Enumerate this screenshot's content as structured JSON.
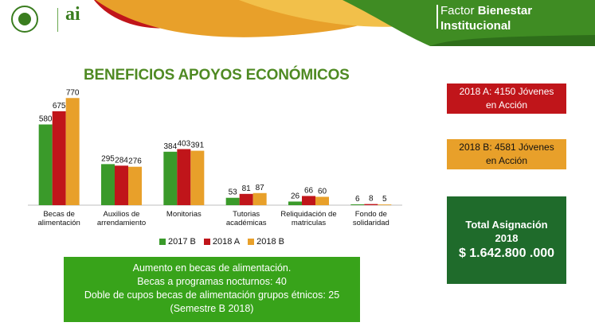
{
  "header": {
    "title_prefix": "Factor",
    "title_bold": "Bienestar",
    "title_line2": "Institucional",
    "logo_text": "ai"
  },
  "colors": {
    "s2017b": "#3a9a2a",
    "s2018a": "#c0151a",
    "s2018b": "#e8a02a",
    "title_green": "#4f8a23",
    "note_green": "#38a31a",
    "total_green": "#1f6b2b"
  },
  "chart_data": {
    "type": "bar",
    "title": "BENEFICIOS APOYOS ECONÓMICOS",
    "categories": [
      [
        "Becas de",
        "alimentación"
      ],
      [
        "Auxilios de",
        "arrendamiento"
      ],
      [
        "Monitorias"
      ],
      [
        "Tutorias",
        "académicas"
      ],
      [
        "Reliquidación de",
        "matriculas"
      ],
      [
        "Fondo de",
        "solidaridad"
      ]
    ],
    "series": [
      {
        "name": "2017 B",
        "values": [
          580,
          295,
          384,
          53,
          26,
          6
        ]
      },
      {
        "name": "2018 A",
        "values": [
          675,
          284,
          403,
          81,
          66,
          8
        ]
      },
      {
        "name": "2018 B",
        "values": [
          770,
          276,
          391,
          87,
          60,
          5
        ]
      }
    ],
    "ylim": [
      0,
      800
    ],
    "grid": false,
    "legend": "bottom"
  },
  "notes": {
    "line1": "Aumento en becas de alimentación.",
    "line2": "Becas a programas nocturnos: 40",
    "line3": "Doble de cupos  becas de alimentación  grupos étnicos: 25",
    "line4": "(Semestre B 2018)"
  },
  "side": {
    "a_line1": "2018 A: 4150 Jóvenes",
    "a_line2": "en Acción",
    "b_line1": "2018 B: 4581 Jóvenes",
    "b_line2": "en Acción",
    "total_line1": "Total Asignación",
    "total_line2": "2018",
    "total_amount": "$ 1.642.800 .000"
  }
}
